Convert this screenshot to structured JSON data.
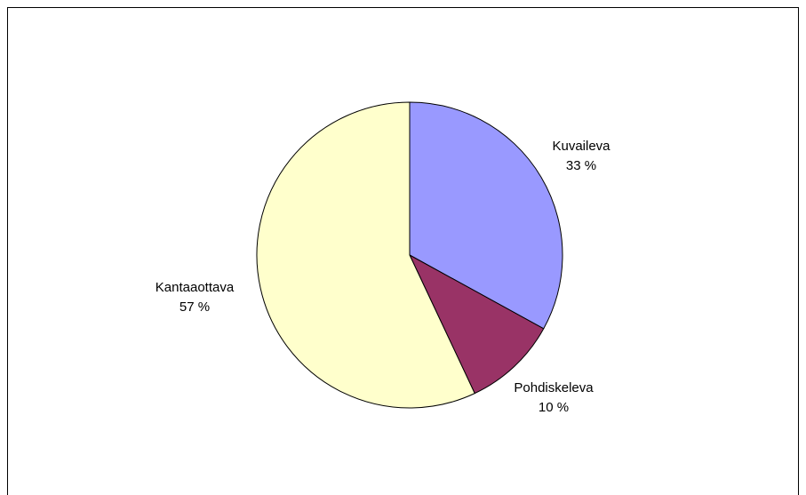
{
  "chart_data": {
    "type": "pie",
    "slices": [
      {
        "label": "Kuvaileva",
        "percent_label": "33 %",
        "value": 33,
        "color": "#9999FF"
      },
      {
        "label": "Pohdiskeleva",
        "percent_label": "10 %",
        "value": 10,
        "color": "#993366"
      },
      {
        "label": "Kantaaottava",
        "percent_label": "57 %",
        "value": 57,
        "color": "#FFFFCC"
      }
    ],
    "start_angle": "12 o'clock",
    "direction": "clockwise",
    "legend": "none",
    "border_color": "#000000"
  }
}
